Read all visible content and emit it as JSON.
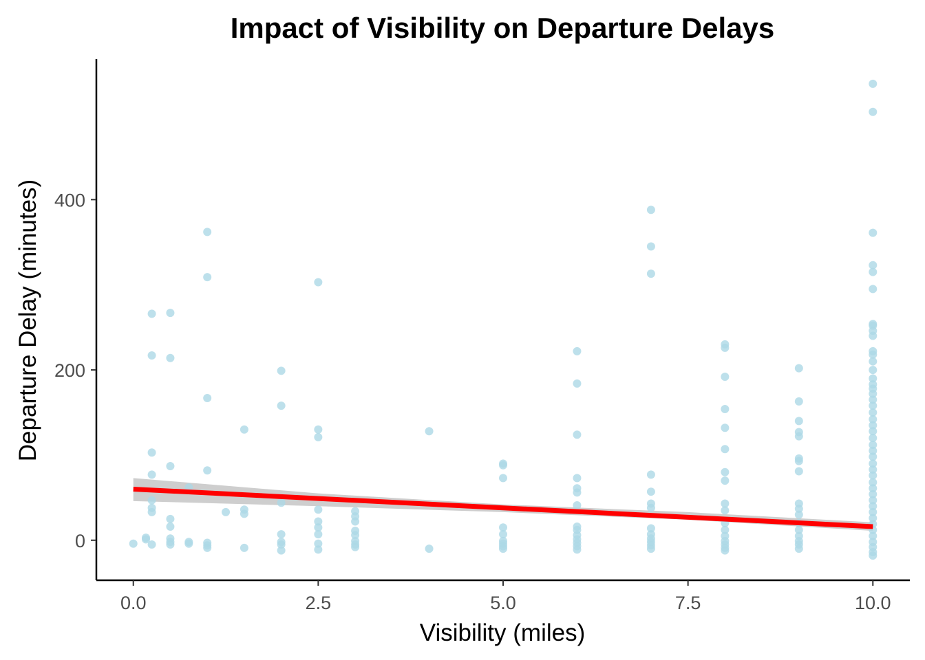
{
  "chart_data": {
    "type": "scatter",
    "title": "Impact of Visibility on Departure Delays",
    "xlabel": "Visibility (miles)",
    "ylabel": "Departure Delay (minutes)",
    "xlim": [
      -0.5,
      10.5
    ],
    "ylim": [
      -47,
      565
    ],
    "x_ticks": [
      0,
      2.5,
      5,
      7.5,
      10
    ],
    "x_tick_labels": [
      "0.0",
      "2.5",
      "5.0",
      "7.5",
      "10.0"
    ],
    "y_ticks": [
      0,
      200,
      400
    ],
    "y_tick_labels": [
      "0",
      "200",
      "400"
    ],
    "grid": false,
    "legend": "none",
    "colors": {
      "points": "#add8e6",
      "trend": "#ff0000",
      "ribbon": "#bebebe"
    },
    "trend_line": {
      "method": "linear",
      "intercept": 60,
      "slope": -4.4,
      "x_range": [
        0,
        10
      ]
    },
    "confidence_band": [
      {
        "x": 0,
        "lower": 46,
        "upper": 73
      },
      {
        "x": 2.5,
        "lower": 40,
        "upper": 55
      },
      {
        "x": 5,
        "lower": 33,
        "upper": 42
      },
      {
        "x": 7.5,
        "lower": 24,
        "upper": 33
      },
      {
        "x": 10,
        "lower": 11,
        "upper": 21
      }
    ],
    "points": [
      {
        "x": 0,
        "y": -4
      },
      {
        "x": 0.17,
        "y": 1
      },
      {
        "x": 0.17,
        "y": 3
      },
      {
        "x": 0.25,
        "y": -5
      },
      {
        "x": 0.25,
        "y": 266
      },
      {
        "x": 0.25,
        "y": 217
      },
      {
        "x": 0.25,
        "y": 103
      },
      {
        "x": 0.25,
        "y": 77
      },
      {
        "x": 0.25,
        "y": 47
      },
      {
        "x": 0.25,
        "y": 38
      },
      {
        "x": 0.25,
        "y": 33
      },
      {
        "x": 0.5,
        "y": 267
      },
      {
        "x": 0.5,
        "y": 214
      },
      {
        "x": 0.5,
        "y": 87
      },
      {
        "x": 0.5,
        "y": 25
      },
      {
        "x": 0.5,
        "y": 16
      },
      {
        "x": 0.5,
        "y": 2
      },
      {
        "x": 0.5,
        "y": -2
      },
      {
        "x": 0.5,
        "y": -5
      },
      {
        "x": 0.75,
        "y": 62
      },
      {
        "x": 0.75,
        "y": -2
      },
      {
        "x": 0.75,
        "y": -4
      },
      {
        "x": 1,
        "y": 362
      },
      {
        "x": 1,
        "y": 309
      },
      {
        "x": 1,
        "y": 167
      },
      {
        "x": 1,
        "y": 82
      },
      {
        "x": 1,
        "y": -3
      },
      {
        "x": 1,
        "y": -6
      },
      {
        "x": 1,
        "y": -9
      },
      {
        "x": 1.25,
        "y": 33
      },
      {
        "x": 1.5,
        "y": 130
      },
      {
        "x": 1.5,
        "y": 36
      },
      {
        "x": 1.5,
        "y": 31
      },
      {
        "x": 1.5,
        "y": -9
      },
      {
        "x": 2,
        "y": 199
      },
      {
        "x": 2,
        "y": 158
      },
      {
        "x": 2,
        "y": 44
      },
      {
        "x": 2,
        "y": 7
      },
      {
        "x": 2,
        "y": -2
      },
      {
        "x": 2,
        "y": -5
      },
      {
        "x": 2,
        "y": -12
      },
      {
        "x": 2.5,
        "y": 303
      },
      {
        "x": 2.5,
        "y": 130
      },
      {
        "x": 2.5,
        "y": 121
      },
      {
        "x": 2.5,
        "y": 36
      },
      {
        "x": 2.5,
        "y": 22
      },
      {
        "x": 2.5,
        "y": 15
      },
      {
        "x": 2.5,
        "y": 7
      },
      {
        "x": 2.5,
        "y": -4
      },
      {
        "x": 2.5,
        "y": -11
      },
      {
        "x": 3,
        "y": 34
      },
      {
        "x": 3,
        "y": 28
      },
      {
        "x": 3,
        "y": 22
      },
      {
        "x": 3,
        "y": 11
      },
      {
        "x": 3,
        "y": 6
      },
      {
        "x": 3,
        "y": -1
      },
      {
        "x": 3,
        "y": -5
      },
      {
        "x": 3,
        "y": -8
      },
      {
        "x": 4,
        "y": 128
      },
      {
        "x": 4,
        "y": -10
      },
      {
        "x": 5,
        "y": 90
      },
      {
        "x": 5,
        "y": 88
      },
      {
        "x": 5,
        "y": 73
      },
      {
        "x": 5,
        "y": 15
      },
      {
        "x": 5,
        "y": 7
      },
      {
        "x": 5,
        "y": -1
      },
      {
        "x": 5,
        "y": -4
      },
      {
        "x": 5,
        "y": -7
      },
      {
        "x": 5,
        "y": -10
      },
      {
        "x": 6,
        "y": 222
      },
      {
        "x": 6,
        "y": 184
      },
      {
        "x": 6,
        "y": 124
      },
      {
        "x": 6,
        "y": 73
      },
      {
        "x": 6,
        "y": 61
      },
      {
        "x": 6,
        "y": 56
      },
      {
        "x": 6,
        "y": 41
      },
      {
        "x": 6,
        "y": 16
      },
      {
        "x": 6,
        "y": 12
      },
      {
        "x": 6,
        "y": 6
      },
      {
        "x": 6,
        "y": 1
      },
      {
        "x": 6,
        "y": -3
      },
      {
        "x": 6,
        "y": -7
      },
      {
        "x": 6,
        "y": -11
      },
      {
        "x": 7,
        "y": 388
      },
      {
        "x": 7,
        "y": 345
      },
      {
        "x": 7,
        "y": 313
      },
      {
        "x": 7,
        "y": 77
      },
      {
        "x": 7,
        "y": 57
      },
      {
        "x": 7,
        "y": 43
      },
      {
        "x": 7,
        "y": 38
      },
      {
        "x": 7,
        "y": 14
      },
      {
        "x": 7,
        "y": 7
      },
      {
        "x": 7,
        "y": 2
      },
      {
        "x": 7,
        "y": -2
      },
      {
        "x": 7,
        "y": -6
      },
      {
        "x": 7,
        "y": -10
      },
      {
        "x": 8,
        "y": 230
      },
      {
        "x": 8,
        "y": 226
      },
      {
        "x": 8,
        "y": 192
      },
      {
        "x": 8,
        "y": 154
      },
      {
        "x": 8,
        "y": 132
      },
      {
        "x": 8,
        "y": 107
      },
      {
        "x": 8,
        "y": 80
      },
      {
        "x": 8,
        "y": 70
      },
      {
        "x": 8,
        "y": 43
      },
      {
        "x": 8,
        "y": 35
      },
      {
        "x": 8,
        "y": 20
      },
      {
        "x": 8,
        "y": 12
      },
      {
        "x": 8,
        "y": 5
      },
      {
        "x": 8,
        "y": -1
      },
      {
        "x": 8,
        "y": -5
      },
      {
        "x": 8,
        "y": -9
      },
      {
        "x": 8,
        "y": -12
      },
      {
        "x": 9,
        "y": 202
      },
      {
        "x": 9,
        "y": 163
      },
      {
        "x": 9,
        "y": 140
      },
      {
        "x": 9,
        "y": 127
      },
      {
        "x": 9,
        "y": 122
      },
      {
        "x": 9,
        "y": 96
      },
      {
        "x": 9,
        "y": 93
      },
      {
        "x": 9,
        "y": 81
      },
      {
        "x": 9,
        "y": 43
      },
      {
        "x": 9,
        "y": 37
      },
      {
        "x": 9,
        "y": 30
      },
      {
        "x": 9,
        "y": 20
      },
      {
        "x": 9,
        "y": 12
      },
      {
        "x": 9,
        "y": 5
      },
      {
        "x": 9,
        "y": -1
      },
      {
        "x": 9,
        "y": -5
      },
      {
        "x": 9,
        "y": -10
      },
      {
        "x": 10,
        "y": 536
      },
      {
        "x": 10,
        "y": 503
      },
      {
        "x": 10,
        "y": 361
      },
      {
        "x": 10,
        "y": 323
      },
      {
        "x": 10,
        "y": 315
      },
      {
        "x": 10,
        "y": 295
      },
      {
        "x": 10,
        "y": 254
      },
      {
        "x": 10,
        "y": 252
      },
      {
        "x": 10,
        "y": 246
      },
      {
        "x": 10,
        "y": 240
      },
      {
        "x": 10,
        "y": 222
      },
      {
        "x": 10,
        "y": 218
      },
      {
        "x": 10,
        "y": 210
      },
      {
        "x": 10,
        "y": 200
      },
      {
        "x": 10,
        "y": 190
      },
      {
        "x": 10,
        "y": 183
      },
      {
        "x": 10,
        "y": 178
      },
      {
        "x": 10,
        "y": 172
      },
      {
        "x": 10,
        "y": 165
      },
      {
        "x": 10,
        "y": 158
      },
      {
        "x": 10,
        "y": 150
      },
      {
        "x": 10,
        "y": 142
      },
      {
        "x": 10,
        "y": 135
      },
      {
        "x": 10,
        "y": 128
      },
      {
        "x": 10,
        "y": 120
      },
      {
        "x": 10,
        "y": 112
      },
      {
        "x": 10,
        "y": 105
      },
      {
        "x": 10,
        "y": 98
      },
      {
        "x": 10,
        "y": 90
      },
      {
        "x": 10,
        "y": 83
      },
      {
        "x": 10,
        "y": 76
      },
      {
        "x": 10,
        "y": 68
      },
      {
        "x": 10,
        "y": 61
      },
      {
        "x": 10,
        "y": 54
      },
      {
        "x": 10,
        "y": 47
      },
      {
        "x": 10,
        "y": 40
      },
      {
        "x": 10,
        "y": 33
      },
      {
        "x": 10,
        "y": 26
      },
      {
        "x": 10,
        "y": 19
      },
      {
        "x": 10,
        "y": 12
      },
      {
        "x": 10,
        "y": 5
      },
      {
        "x": 10,
        "y": -2
      },
      {
        "x": 10,
        "y": -8
      },
      {
        "x": 10,
        "y": -14
      },
      {
        "x": 10,
        "y": -18
      }
    ]
  }
}
